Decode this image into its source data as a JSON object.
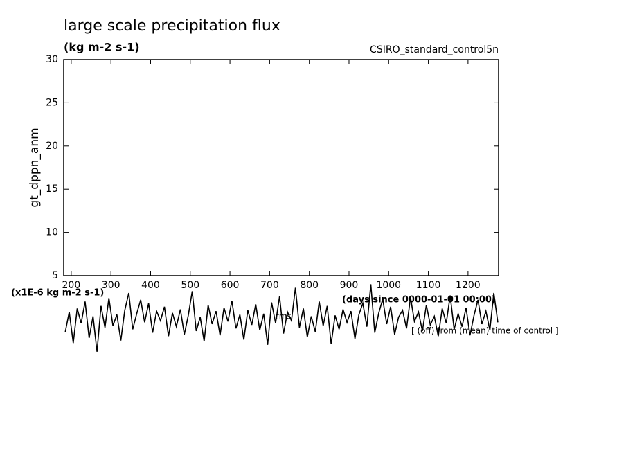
{
  "chart_data": {
    "type": "line",
    "title": "large scale precipitation flux",
    "subtitle": "(kg m-2 s-1)",
    "run_label": "CSIRO_standard_control5n",
    "y_label": "gt_dppn_anm",
    "value_unit_label": "(x1E-6 kg m-2 s-1)",
    "x_label": "(days since 0000-01-01 00:00)",
    "annotation": "[ (off) from (mean) time of control ]",
    "annotation2": "rms",
    "color": "#000000",
    "xlim": [
      181,
      1277
    ],
    "ylim": [
      5,
      30
    ],
    "xticks": [
      200,
      300,
      400,
      500,
      600,
      700,
      800,
      900,
      1000,
      1100,
      1200
    ],
    "yticks": [
      5,
      10,
      15,
      20,
      25,
      30
    ],
    "x": [
      185,
      195,
      205,
      215,
      225,
      235,
      245,
      255,
      265,
      275,
      285,
      295,
      305,
      315,
      325,
      335,
      345,
      355,
      365,
      375,
      385,
      395,
      405,
      415,
      425,
      435,
      445,
      455,
      465,
      475,
      485,
      495,
      505,
      515,
      525,
      535,
      545,
      555,
      565,
      575,
      585,
      595,
      605,
      615,
      625,
      635,
      645,
      655,
      665,
      675,
      685,
      695,
      705,
      715,
      725,
      735,
      745,
      755,
      765,
      775,
      785,
      795,
      805,
      815,
      825,
      835,
      845,
      855,
      865,
      875,
      885,
      895,
      905,
      915,
      925,
      935,
      945,
      955,
      965,
      975,
      985,
      995,
      1005,
      1015,
      1025,
      1035,
      1045,
      1055,
      1065,
      1075,
      1085,
      1095,
      1105,
      1115,
      1125,
      1135,
      1145,
      1155,
      1165,
      1175,
      1185,
      1195,
      1205,
      1215,
      1225,
      1235,
      1245,
      1255,
      1265,
      1275
    ],
    "values": [
      -1.5,
      0.8,
      -2.8,
      1.2,
      -0.5,
      2.0,
      -2.2,
      0.3,
      -3.8,
      1.5,
      -1.0,
      2.4,
      -0.8,
      0.5,
      -2.5,
      1.0,
      3.0,
      -1.2,
      0.6,
      2.2,
      -0.4,
      1.8,
      -1.6,
      0.9,
      -0.2,
      1.4,
      -2.0,
      0.7,
      -0.9,
      1.1,
      -1.8,
      0.4,
      3.2,
      -1.4,
      0.2,
      -2.6,
      1.6,
      -0.6,
      0.9,
      -1.9,
      1.3,
      -0.3,
      2.1,
      -1.1,
      0.5,
      -2.4,
      1.0,
      -0.7,
      1.7,
      -1.3,
      0.6,
      -3.0,
      1.9,
      -0.5,
      2.6,
      -1.7,
      0.8,
      -0.2,
      3.6,
      -1.0,
      1.2,
      -2.1,
      0.3,
      -1.5,
      2.0,
      -0.8,
      1.5,
      -2.9,
      0.4,
      -1.2,
      1.1,
      -0.4,
      0.9,
      -2.3,
      0.5,
      1.8,
      -0.9,
      4.0,
      -1.6,
      0.7,
      2.3,
      -0.6,
      1.4,
      -1.8,
      0.2,
      1.0,
      -1.1,
      2.5,
      -0.3,
      0.8,
      -1.4,
      1.6,
      -0.7,
      0.3,
      -2.0,
      1.2,
      -0.5,
      2.7,
      -1.2,
      0.6,
      -0.9,
      1.3,
      -1.9,
      0.4,
      2.2,
      -0.6,
      0.9,
      -1.3,
      3.0,
      -0.4
    ]
  }
}
